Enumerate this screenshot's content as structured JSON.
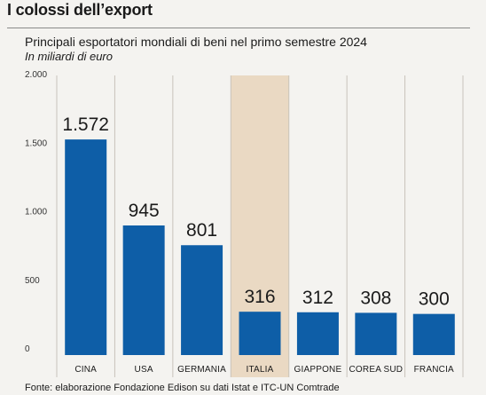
{
  "header": {
    "title": "I colossi dell’export"
  },
  "source": "Fonte: elaborazione Fondazione Edison su dati Istat e ITC-UN Comtrade",
  "chart_data": {
    "type": "bar",
    "title": "Principali esportatori mondiali di beni nel primo semestre 2024",
    "subtitle": "In miliardi di euro",
    "categories": [
      "CINA",
      "USA",
      "GERMANIA",
      "ITALIA",
      "GIAPPONE",
      "COREA SUD",
      "FRANCIA"
    ],
    "values": [
      1572,
      945,
      801,
      316,
      312,
      308,
      300
    ],
    "value_labels": [
      "1.572",
      "945",
      "801",
      "316",
      "312",
      "308",
      "300"
    ],
    "ylim": [
      0,
      2000
    ],
    "yticks": [
      0,
      500,
      1000,
      1500,
      2000
    ],
    "ytick_labels": [
      "0",
      "500",
      "1.000",
      "1.500",
      "2.000"
    ],
    "highlight_category": "ITALIA",
    "grid": "vertical separators",
    "colors": {
      "bar": "#0e5ea7",
      "highlight_band": "#ead9c3",
      "background": "#f4f3f0"
    }
  }
}
